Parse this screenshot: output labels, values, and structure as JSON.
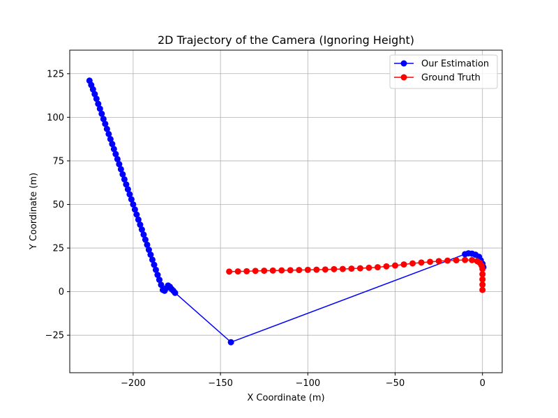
{
  "chart_data": {
    "type": "line",
    "title": "2D Trajectory of the Camera (Ignoring Height)",
    "xlabel": "X Coordinate (m)",
    "ylabel": "Y Coordinate (m)",
    "xlim": [
      -236.3,
      11.3
    ],
    "ylim": [
      -46.5,
      138.5
    ],
    "xticks": [
      -200,
      -150,
      -100,
      -50,
      0
    ],
    "xtick_labels": [
      "−200",
      "−150",
      "−100",
      "−50",
      "0"
    ],
    "yticks": [
      -25,
      0,
      25,
      50,
      75,
      100,
      125
    ],
    "ytick_labels": [
      "−25",
      "0",
      "25",
      "50",
      "75",
      "100",
      "125"
    ],
    "grid": true,
    "legend_position": "top-right",
    "series": [
      {
        "name": "Our Estimation",
        "color": "#0000ff",
        "marker": "circle",
        "points": [
          [
            -225.0,
            121.0
          ],
          [
            -224.0,
            118.5
          ],
          [
            -223.0,
            116.0
          ],
          [
            -222.0,
            113.3
          ],
          [
            -221.0,
            110.6
          ],
          [
            -220.0,
            107.7
          ],
          [
            -219.0,
            104.9
          ],
          [
            -218.0,
            102.0
          ],
          [
            -217.0,
            99.0
          ],
          [
            -216.0,
            96.2
          ],
          [
            -215.0,
            93.3
          ],
          [
            -214.0,
            90.4
          ],
          [
            -213.0,
            87.5
          ],
          [
            -212.0,
            84.7
          ],
          [
            -211.0,
            81.8
          ],
          [
            -210.0,
            78.9
          ],
          [
            -209.0,
            76.0
          ],
          [
            -208.0,
            73.1
          ],
          [
            -207.0,
            70.2
          ],
          [
            -206.0,
            67.3
          ],
          [
            -205.0,
            64.4
          ],
          [
            -204.0,
            61.5
          ],
          [
            -203.0,
            58.7
          ],
          [
            -202.0,
            55.8
          ],
          [
            -201.0,
            52.9
          ],
          [
            -200.0,
            50.0
          ],
          [
            -199.0,
            47.1
          ],
          [
            -198.0,
            44.2
          ],
          [
            -197.0,
            41.3
          ],
          [
            -196.0,
            38.4
          ],
          [
            -195.0,
            35.6
          ],
          [
            -194.0,
            32.7
          ],
          [
            -193.0,
            29.8
          ],
          [
            -192.0,
            26.9
          ],
          [
            -191.0,
            24.0
          ],
          [
            -190.0,
            21.2
          ],
          [
            -189.0,
            18.3
          ],
          [
            -188.0,
            15.4
          ],
          [
            -187.0,
            12.5
          ],
          [
            -186.0,
            9.6
          ],
          [
            -185.0,
            6.8
          ],
          [
            -184.0,
            3.9
          ],
          [
            -183.0,
            1.0
          ],
          [
            -182.0,
            0.5
          ],
          [
            -181.0,
            2.0
          ],
          [
            -180.0,
            3.5
          ],
          [
            -179.0,
            2.8
          ],
          [
            -178.0,
            1.5
          ],
          [
            -177.0,
            0.5
          ],
          [
            -176.0,
            -0.7
          ],
          [
            -144.0,
            -29.0
          ],
          [
            -10.0,
            21.5
          ],
          [
            -8.0,
            22.0
          ],
          [
            -6.0,
            21.8
          ],
          [
            -4.0,
            21.2
          ],
          [
            -2.0,
            20.0
          ],
          [
            -1.0,
            18.0
          ],
          [
            0.0,
            16.0
          ],
          [
            0.5,
            14.0
          ]
        ]
      },
      {
        "name": "Ground Truth",
        "color": "#ff0000",
        "marker": "circle",
        "points": [
          [
            -145.0,
            11.5
          ],
          [
            -140.0,
            11.6
          ],
          [
            -135.0,
            11.7
          ],
          [
            -130.0,
            11.9
          ],
          [
            -125.0,
            12.0
          ],
          [
            -120.0,
            12.1
          ],
          [
            -115.0,
            12.2
          ],
          [
            -110.0,
            12.3
          ],
          [
            -105.0,
            12.4
          ],
          [
            -100.0,
            12.5
          ],
          [
            -95.0,
            12.6
          ],
          [
            -90.0,
            12.7
          ],
          [
            -85.0,
            12.9
          ],
          [
            -80.0,
            13.0
          ],
          [
            -75.0,
            13.2
          ],
          [
            -70.0,
            13.4
          ],
          [
            -65.0,
            13.7
          ],
          [
            -60.0,
            14.0
          ],
          [
            -55.0,
            14.5
          ],
          [
            -50.0,
            15.0
          ],
          [
            -45.0,
            15.6
          ],
          [
            -40.0,
            16.2
          ],
          [
            -35.0,
            16.7
          ],
          [
            -30.0,
            17.1
          ],
          [
            -25.0,
            17.5
          ],
          [
            -20.0,
            17.8
          ],
          [
            -15.0,
            18.0
          ],
          [
            -10.0,
            18.2
          ],
          [
            -6.0,
            18.1
          ],
          [
            -3.0,
            17.5
          ],
          [
            -1.5,
            16.5
          ],
          [
            -0.5,
            15.0
          ],
          [
            0.0,
            13.0
          ],
          [
            0.0,
            10.0
          ],
          [
            0.0,
            7.0
          ],
          [
            0.0,
            4.0
          ],
          [
            0.0,
            1.0
          ]
        ]
      }
    ]
  }
}
